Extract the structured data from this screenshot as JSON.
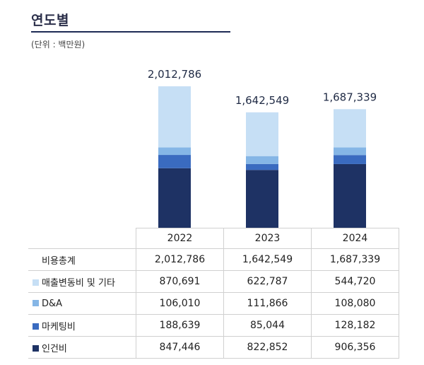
{
  "header": {
    "title": "연도별",
    "unit": "(단위 : 백만원)"
  },
  "chart_data": {
    "type": "bar",
    "stacked": true,
    "categories": [
      "2022",
      "2023",
      "2024"
    ],
    "totals_label": "비용총계",
    "totals": [
      2012786,
      1642549,
      1687339
    ],
    "totals_text": [
      "2,012,786",
      "1,642,549",
      "1,687,339"
    ],
    "series": [
      {
        "name": "인건비",
        "color": "#1e3264",
        "values": [
          847446,
          822852,
          906356
        ],
        "text": [
          "847,446",
          "822,852",
          "906,356"
        ]
      },
      {
        "name": "마케팅비",
        "color": "#3a6bc0",
        "values": [
          188639,
          85044,
          128182
        ],
        "text": [
          "188,639",
          "85,044",
          "128,182"
        ]
      },
      {
        "name": "D&A",
        "color": "#85b6e6",
        "values": [
          106010,
          111866,
          108080
        ],
        "text": [
          "106,010",
          "111,866",
          "108,080"
        ]
      },
      {
        "name": "매출변동비 및 기타",
        "color": "#c6dff5",
        "values": [
          870691,
          622787,
          544720
        ],
        "text": [
          "870,691",
          "622,787",
          "544,720"
        ]
      }
    ],
    "table_order": [
      3,
      2,
      1,
      0
    ]
  }
}
